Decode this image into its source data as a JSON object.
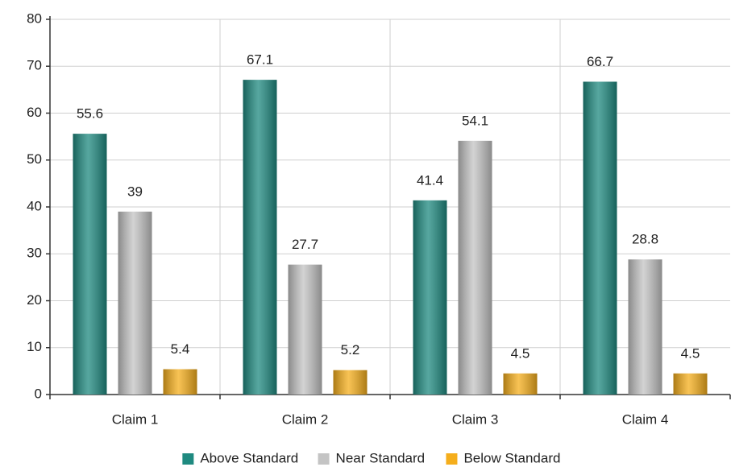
{
  "chart_data": {
    "type": "bar",
    "categories": [
      "Claim 1",
      "Claim 2",
      "Claim 3",
      "Claim 4"
    ],
    "series": [
      {
        "name": "Above Standard",
        "color": "#1f8a80",
        "values": [
          55.6,
          67.1,
          41.4,
          66.7
        ]
      },
      {
        "name": "Near Standard",
        "color": "#c4c4c4",
        "values": [
          39,
          27.7,
          54.1,
          28.8
        ]
      },
      {
        "name": "Below Standard",
        "color": "#f5ae1c",
        "values": [
          5.4,
          5.2,
          4.5,
          4.5
        ]
      }
    ],
    "ylim": [
      0,
      80
    ],
    "yticks": [
      0,
      10,
      20,
      30,
      40,
      50,
      60,
      70,
      80
    ],
    "grid": true,
    "legend": "bottom"
  }
}
